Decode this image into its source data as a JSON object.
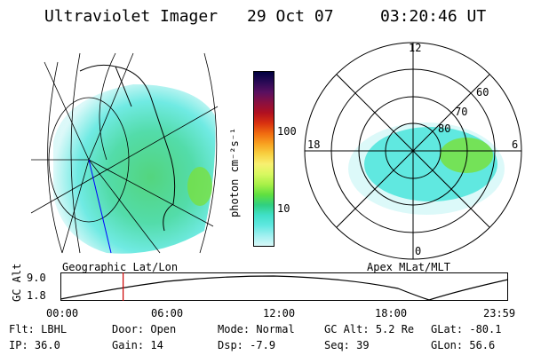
{
  "header": {
    "instrument": "Ultraviolet Imager",
    "date": "29 Oct 07",
    "time": "03:20:46 UT"
  },
  "left_panel": {
    "label": "Geographic Lat/Lon"
  },
  "right_panel": {
    "label": "Apex MLat/MLT",
    "mlt_labels": [
      "12",
      "18",
      "6",
      "0"
    ],
    "lat_labels": [
      "80",
      "70",
      "60"
    ]
  },
  "colorbar": {
    "unit": "photon cm⁻²s⁻¹",
    "tick_labels": [
      "100",
      "10"
    ],
    "colors": [
      "#000040",
      "#2a0a55",
      "#5a1060",
      "#8a1040",
      "#b01020",
      "#d83010",
      "#f06a10",
      "#f8a020",
      "#f8d040",
      "#f8f070",
      "#d8f860",
      "#a8f048",
      "#60e040",
      "#30d080",
      "#40e0c8",
      "#60e8e0",
      "#a0f0f0",
      "#d8f8f8"
    ]
  },
  "altitude_plot": {
    "ylabel": "GC Alt",
    "ytick_labels": [
      "9.0",
      "1.8"
    ],
    "xtick_labels": [
      "00:00",
      "06:00",
      "12:00",
      "18:00",
      "23:59"
    ],
    "marker_time_fraction": 0.14
  },
  "info": {
    "row1": [
      {
        "label": "Flt:",
        "value": "LBHL"
      },
      {
        "label": "Door:",
        "value": "Open"
      },
      {
        "label": "Mode:",
        "value": "Normal"
      },
      {
        "label": "GC Alt:",
        "value": "5.2 Re"
      },
      {
        "label": "GLat:",
        "value": "-80.1"
      }
    ],
    "row2": [
      {
        "label": "IP:",
        "value": "36.0"
      },
      {
        "label": "Gain:",
        "value": "14"
      },
      {
        "label": "Dsp:",
        "value": "-7.9"
      },
      {
        "label": "Seq:",
        "value": "39"
      },
      {
        "label": "GLon:",
        "value": "56.6"
      }
    ]
  }
}
